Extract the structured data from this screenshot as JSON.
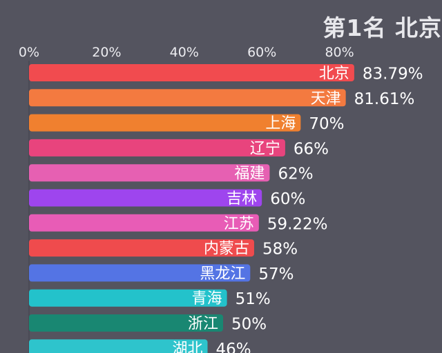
{
  "title": "第1名 北京",
  "chart_data": {
    "type": "bar",
    "orientation": "horizontal",
    "title": "第1名 北京",
    "xticks": [
      "0%",
      "20%",
      "40%",
      "60%",
      "80%"
    ],
    "xlim": [
      0,
      80
    ],
    "categories": [
      "北京",
      "天津",
      "上海",
      "辽宁",
      "福建",
      "吉林",
      "江苏",
      "内蒙古",
      "黑龙江",
      "青海",
      "浙江",
      "湖北"
    ],
    "values": [
      83.79,
      81.61,
      70,
      66,
      62,
      60,
      59.22,
      58,
      57,
      51,
      50,
      46
    ],
    "value_labels": [
      "83.79%",
      "81.61%",
      "70%",
      "66%",
      "62%",
      "60%",
      "59.22%",
      "58%",
      "57%",
      "51%",
      "50%",
      "46%"
    ],
    "colors": [
      "#f14b4f",
      "#f37a40",
      "#f0802f",
      "#e8447d",
      "#e660b2",
      "#9e45ee",
      "#e85cb6",
      "#ef4b4d",
      "#5474e4",
      "#23c2cb",
      "#198772",
      "#2ec4cc"
    ]
  }
}
